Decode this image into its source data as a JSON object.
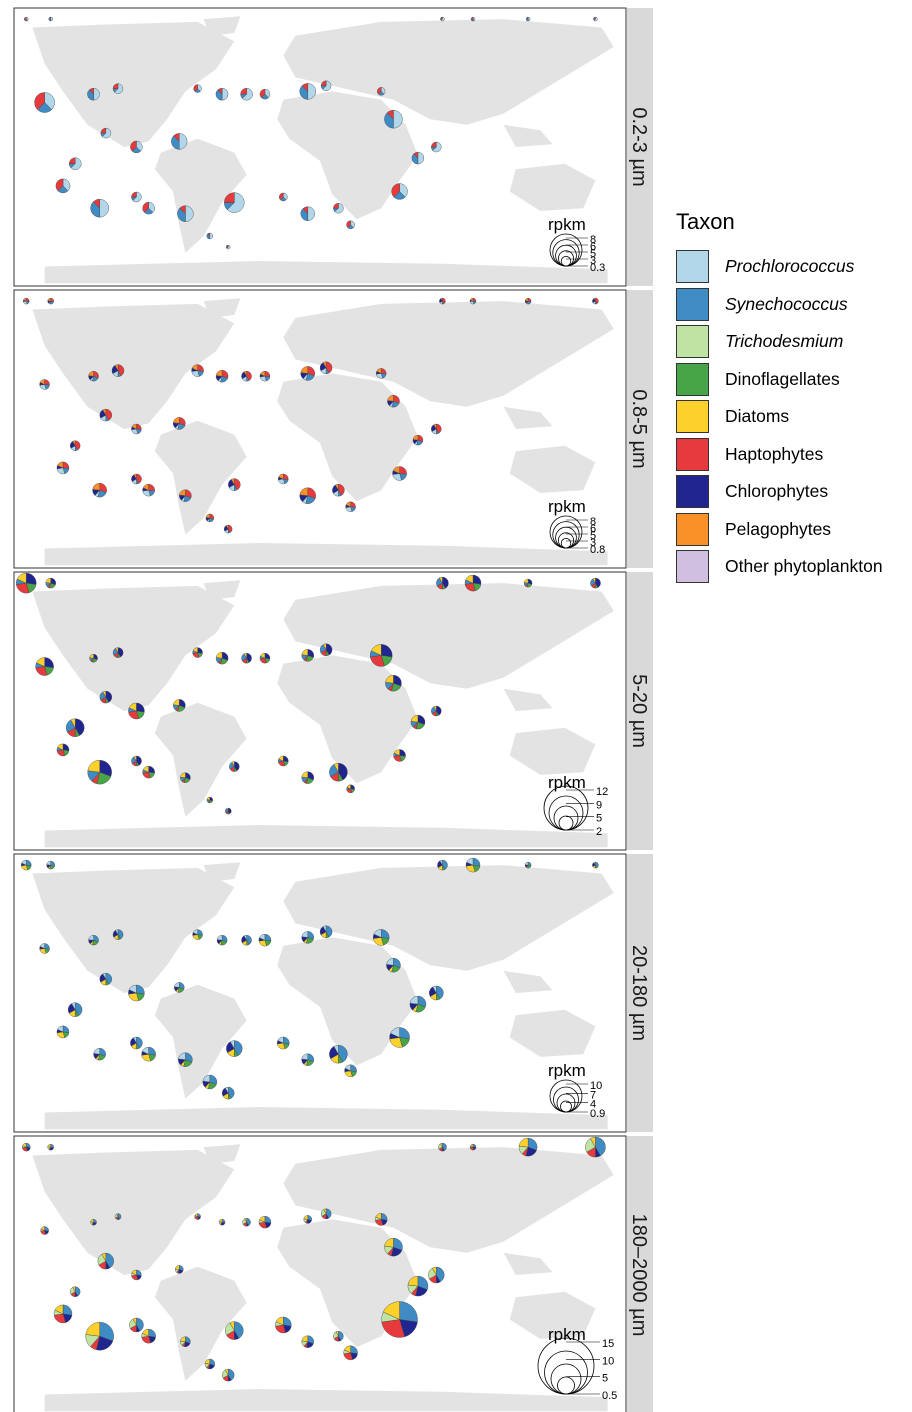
{
  "chart_data": {
    "type": "pie-map",
    "legend": {
      "title": "Taxon",
      "entries": [
        {
          "label": "Prochlorococcus",
          "italic": true,
          "color": "#b3d7ea"
        },
        {
          "label": "Synechococcus",
          "italic": true,
          "color": "#3f8bc4"
        },
        {
          "label": "Trichodesmium",
          "italic": true,
          "color": "#bfe3a3"
        },
        {
          "label": "Dinoflagellates",
          "italic": false,
          "color": "#47a447"
        },
        {
          "label": "Diatoms",
          "italic": false,
          "color": "#fdd02b"
        },
        {
          "label": "Haptophytes",
          "italic": false,
          "color": "#e63a3c"
        },
        {
          "label": "Chlorophytes",
          "italic": false,
          "color": "#202590"
        },
        {
          "label": "Pelagophytes",
          "italic": false,
          "color": "#fa9128"
        },
        {
          "label": "Other phytoplankton",
          "italic": false,
          "color": "#d0bfe0"
        }
      ]
    },
    "panels": [
      {
        "label": "0.2-3 µm",
        "size_scale": {
          "title": "rpkm",
          "values": [
            "8",
            "6",
            "5",
            "3",
            "0.3"
          ]
        },
        "dominant_taxa": [
          "Prochlorococcus"
        ]
      },
      {
        "label": "0.8-5 µm",
        "size_scale": {
          "title": "rpkm",
          "values": [
            "8",
            "6",
            "5",
            "3",
            "0.8"
          ]
        },
        "dominant_taxa": [
          "Haptophytes",
          "Synechococcus",
          "Prochlorococcus",
          "Chlorophytes",
          "Pelagophytes"
        ]
      },
      {
        "label": "5-20 µm",
        "size_scale": {
          "title": "rpkm",
          "values": [
            "12",
            "9",
            "5",
            "2"
          ]
        },
        "dominant_taxa": [
          "Chlorophytes",
          "Dinoflagellates",
          "Haptophytes",
          "Synechococcus",
          "Diatoms"
        ]
      },
      {
        "label": "20-180 µm",
        "size_scale": {
          "title": "rpkm",
          "values": [
            "10",
            "7",
            "4",
            "0.9"
          ]
        },
        "dominant_taxa": [
          "Synechococcus",
          "Dinoflagellates",
          "Diatoms",
          "Chlorophytes"
        ]
      },
      {
        "label": "180–2000 µm",
        "size_scale": {
          "title": "rpkm",
          "values": [
            "15",
            "10",
            "5",
            "0.5"
          ]
        },
        "dominant_taxa": [
          "Synechococcus",
          "Chlorophytes",
          "Haptophytes",
          "Trichodesmium",
          "Diatoms"
        ]
      }
    ]
  }
}
